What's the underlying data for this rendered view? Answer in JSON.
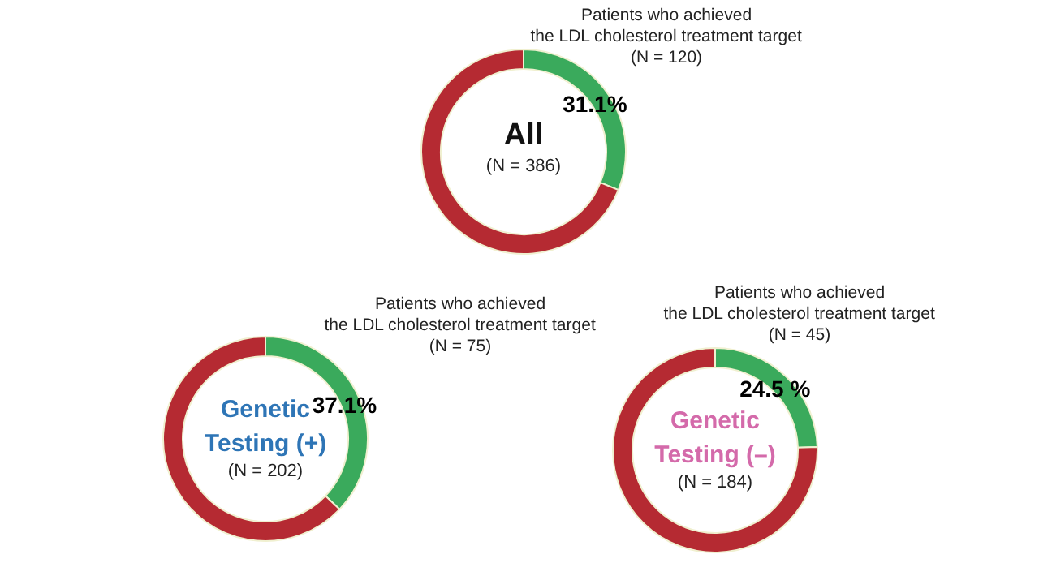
{
  "chart_data": [
    {
      "type": "donut",
      "title": "All",
      "subtitle": "(N = 386)",
      "categories": [
        "Patients who achieved\nthe LDL cholesterol treatment target\n(N = 120)",
        null
      ],
      "values": [
        31.1,
        68.9
      ],
      "colors": [
        "#3aaa5c",
        "#b52a32"
      ],
      "value_labels": [
        "31.1%",
        null
      ]
    },
    {
      "type": "donut",
      "title": "Genetic\nTesting (+)",
      "subtitle": "(N = 202)",
      "categories": [
        "Patients who achieved\nthe LDL cholesterol treatment target\n(N = 75)",
        null
      ],
      "values": [
        37.1,
        62.9
      ],
      "colors": [
        "#3aaa5c",
        "#b52a32"
      ],
      "value_labels": [
        "37.1%",
        null
      ]
    },
    {
      "type": "donut",
      "title": "Genetic\nTesting (–)",
      "subtitle": "(N = 184)",
      "categories": [
        "Patients who achieved\nthe LDL cholesterol treatment target\n(N = 45)",
        null
      ],
      "values": [
        24.5,
        75.5
      ],
      "colors": [
        "#3aaa5c",
        "#b52a32"
      ],
      "value_labels": [
        "24.5 %",
        null
      ]
    }
  ]
}
